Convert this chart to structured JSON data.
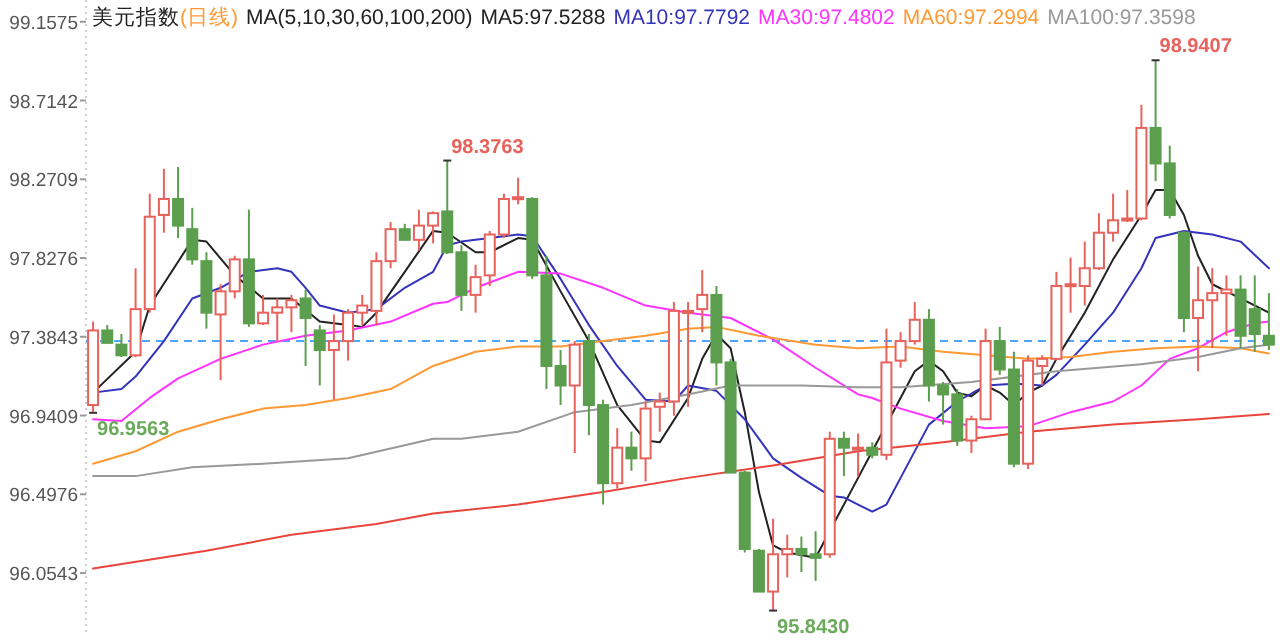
{
  "chart_data": {
    "type": "candlestick",
    "title": "美元指数",
    "subtitle": "(日线)",
    "legend_title": "MA(5,10,30,60,100,200)",
    "legend": "top",
    "categories": [
      null,
      null,
      null,
      null,
      null,
      null,
      null,
      null,
      null,
      null,
      null,
      null,
      null,
      null,
      null,
      null,
      null,
      null,
      null,
      null,
      null,
      null,
      null,
      null,
      null,
      null,
      null,
      null,
      null,
      null,
      null,
      null,
      null,
      null,
      null,
      null,
      null,
      null,
      null,
      null,
      null,
      null,
      null,
      null,
      null,
      null,
      null,
      null,
      null,
      null,
      null,
      null,
      null,
      null,
      null,
      null,
      null,
      null,
      null,
      null,
      null,
      null,
      null,
      null,
      null,
      null,
      null,
      null,
      null,
      null,
      null,
      null,
      null,
      null,
      null,
      null,
      null,
      null,
      null,
      null,
      null,
      null,
      null,
      null
    ],
    "ylim": [
      95.7,
      99.28
    ],
    "yticks": [
      96.0543,
      96.4976,
      96.9409,
      97.3843,
      97.8276,
      98.2709,
      98.7142,
      99.1575
    ],
    "ref_lines": [
      {
        "axis": "y",
        "value": 97.36,
        "color": "#4da6ff",
        "line_style": "dashed"
      }
    ],
    "annotations": [
      "96.9563",
      "98.3763",
      "95.8430",
      "98.9407"
    ],
    "series": [
      {
        "type": "line",
        "name": "MA5:97.5288",
        "color": "#222222",
        "values": [
          97.07,
          null,
          null,
          97.3,
          97.56,
          null,
          null,
          97.93,
          97.92,
          null,
          97.73,
          null,
          97.6,
          null,
          97.6,
          null,
          97.47,
          null,
          97.45,
          97.44,
          97.52,
          null,
          97.75,
          null,
          97.98,
          97.97,
          null,
          97.86,
          97.86,
          null,
          97.94,
          97.93,
          null,
          97.64,
          null,
          97.36,
          null,
          97.0,
          null,
          96.8,
          96.79,
          null,
          97.04,
          97.26,
          97.4,
          97.32,
          96.96,
          96.51,
          96.21,
          96.17,
          null,
          96.14,
          null,
          null,
          96.59,
          96.74,
          null,
          null,
          97.19,
          97.25,
          97.19,
          97.07,
          97.05,
          97.11,
          97.07,
          97.0,
          97.07,
          97.11,
          97.26,
          null,
          97.52,
          null,
          97.82,
          null,
          98.07,
          98.21,
          98.21,
          98.07,
          97.84,
          97.68,
          97.64,
          97.6,
          null,
          97.52
        ]
      },
      {
        "type": "line",
        "name": "MA10:97.7792",
        "color": "#3333bb",
        "values": [
          97.07,
          null,
          97.09,
          97.16,
          null,
          97.36,
          null,
          97.6,
          null,
          97.66,
          null,
          97.75,
          null,
          97.77,
          97.75,
          97.66,
          97.56,
          null,
          97.52,
          null,
          97.54,
          null,
          97.66,
          null,
          97.75,
          97.9,
          97.92,
          null,
          97.94,
          null,
          97.96,
          97.95,
          null,
          97.71,
          null,
          97.45,
          null,
          97.22,
          null,
          97.03,
          null,
          97.02,
          97.11,
          null,
          97.08,
          null,
          96.92,
          null,
          96.7,
          null,
          96.59,
          null,
          96.49,
          96.48,
          96.44,
          96.4,
          96.44,
          96.59,
          null,
          96.89,
          null,
          97.02,
          null,
          97.11,
          null,
          97.12,
          null,
          97.11,
          97.17,
          null,
          97.34,
          null,
          97.52,
          null,
          97.77,
          97.94,
          null,
          97.98,
          null,
          97.96,
          null,
          97.92,
          null,
          97.77
        ]
      },
      {
        "type": "line",
        "name": "MA30:97.4802",
        "color": "#ff33ff",
        "values": [
          96.92,
          null,
          96.91,
          null,
          97.04,
          null,
          97.15,
          null,
          null,
          97.26,
          null,
          null,
          97.34,
          null,
          null,
          97.39,
          null,
          null,
          97.42,
          null,
          null,
          97.47,
          null,
          null,
          97.57,
          97.58,
          null,
          97.66,
          null,
          null,
          97.75,
          null,
          null,
          97.74,
          null,
          null,
          97.66,
          null,
          null,
          97.56,
          null,
          null,
          97.52,
          null,
          null,
          97.49,
          null,
          null,
          97.37,
          null,
          null,
          97.21,
          null,
          null,
          97.06,
          97.04,
          null,
          96.98,
          null,
          null,
          96.91,
          null,
          null,
          96.87,
          null,
          null,
          96.88,
          null,
          null,
          96.96,
          null,
          null,
          97.02,
          null,
          97.11,
          null,
          97.26,
          null,
          97.32,
          null,
          97.41,
          null,
          97.46,
          97.47
        ]
      },
      {
        "type": "line",
        "name": "MA60:97.2994",
        "color": "#ff9933",
        "values": [
          96.67,
          null,
          null,
          96.74,
          null,
          null,
          96.85,
          null,
          null,
          96.92,
          null,
          null,
          96.98,
          null,
          null,
          97.0,
          null,
          null,
          97.04,
          null,
          null,
          97.09,
          null,
          null,
          97.22,
          null,
          null,
          97.3,
          null,
          null,
          97.33,
          null,
          null,
          97.33,
          null,
          null,
          97.36,
          null,
          null,
          97.39,
          null,
          null,
          97.43,
          null,
          97.44,
          null,
          null,
          97.39,
          null,
          null,
          null,
          97.34,
          null,
          null,
          97.32,
          null,
          null,
          97.33,
          null,
          null,
          97.3,
          null,
          null,
          97.28,
          null,
          null,
          97.26,
          null,
          null,
          97.27,
          null,
          null,
          97.3,
          null,
          null,
          97.32,
          null,
          null,
          97.33,
          null,
          null,
          97.32,
          null,
          97.29
        ]
      },
      {
        "type": "line",
        "name": "MA100:97.3598",
        "color": "#999999",
        "values": [
          96.6,
          null,
          null,
          96.6,
          null,
          null,
          null,
          96.65,
          null,
          null,
          null,
          null,
          96.67,
          null,
          null,
          null,
          null,
          null,
          96.7,
          null,
          null,
          null,
          null,
          null,
          96.81,
          null,
          96.81,
          null,
          null,
          null,
          96.85,
          null,
          null,
          null,
          96.96,
          null,
          null,
          null,
          97.0,
          null,
          null,
          null,
          97.06,
          null,
          null,
          97.11,
          null,
          null,
          null,
          null,
          97.11,
          null,
          null,
          null,
          97.1,
          null,
          null,
          97.1,
          null,
          null,
          null,
          null,
          97.13,
          null,
          null,
          null,
          null,
          null,
          97.19,
          null,
          null,
          null,
          null,
          null,
          97.23,
          null,
          null,
          null,
          97.27,
          null,
          null,
          97.32,
          null,
          97.34
        ]
      },
      {
        "type": "line",
        "color": "#e8453c",
        "values": [
          96.08,
          null,
          null,
          null,
          null,
          null,
          null,
          null,
          96.18,
          null,
          null,
          null,
          null,
          null,
          96.27,
          null,
          null,
          null,
          null,
          null,
          96.33,
          null,
          null,
          null,
          96.39,
          null,
          null,
          null,
          null,
          null,
          96.44,
          null,
          null,
          null,
          null,
          null,
          96.51,
          null,
          null,
          null,
          null,
          null,
          96.59,
          null,
          null,
          null,
          null,
          null,
          96.66,
          null,
          null,
          null,
          null,
          null,
          96.74,
          null,
          null,
          null,
          null,
          null,
          96.79,
          null,
          null,
          null,
          null,
          null,
          96.85,
          null,
          null,
          null,
          null,
          null,
          96.89,
          null,
          null,
          null,
          null,
          null,
          96.92,
          null,
          null,
          null,
          null,
          96.95
        ]
      },
      {
        "type": "candlestick",
        "ohlc": [
          [
            97.0,
            97.47,
            96.9563,
            97.42
          ],
          [
            97.42,
            97.45,
            97.35,
            97.35
          ],
          [
            97.34,
            97.4,
            97.27,
            97.28
          ],
          [
            97.28,
            97.77,
            97.27,
            97.54
          ],
          [
            97.54,
            98.19,
            97.52,
            98.06
          ],
          [
            98.07,
            98.33,
            97.97,
            98.16
          ],
          [
            98.16,
            98.34,
            97.94,
            98.01
          ],
          [
            97.99,
            98.11,
            97.79,
            97.82
          ],
          [
            97.81,
            97.86,
            97.43,
            97.52
          ],
          [
            97.51,
            97.68,
            97.14,
            97.64
          ],
          [
            97.64,
            97.84,
            97.6,
            97.82
          ],
          [
            97.82,
            98.1,
            97.44,
            97.46
          ],
          [
            97.46,
            97.62,
            97.45,
            97.52
          ],
          [
            97.52,
            97.6,
            97.36,
            97.55
          ],
          [
            97.55,
            97.62,
            97.41,
            97.59
          ],
          [
            97.6,
            97.65,
            97.22,
            97.49
          ],
          [
            97.42,
            97.45,
            97.11,
            97.31
          ],
          [
            97.31,
            97.51,
            97.03,
            97.36
          ],
          [
            97.36,
            97.54,
            97.25,
            97.52
          ],
          [
            97.52,
            97.62,
            97.45,
            97.56
          ],
          [
            97.53,
            97.86,
            97.45,
            97.81
          ],
          [
            97.81,
            98.03,
            97.77,
            97.99
          ],
          [
            97.99,
            98.02,
            97.93,
            97.93
          ],
          [
            97.93,
            98.1,
            97.87,
            98.01
          ],
          [
            98.01,
            98.09,
            97.91,
            98.08
          ],
          [
            98.09,
            98.3763,
            97.85,
            97.86
          ],
          [
            97.86,
            97.9,
            97.53,
            97.62
          ],
          [
            97.62,
            97.79,
            97.52,
            97.72
          ],
          [
            97.73,
            97.98,
            97.67,
            97.96
          ],
          [
            97.96,
            98.19,
            97.94,
            98.16
          ],
          [
            98.16,
            98.28,
            98.13,
            98.17
          ],
          [
            98.16,
            98.17,
            97.71,
            97.73
          ],
          [
            97.73,
            97.84,
            97.09,
            97.22
          ],
          [
            97.22,
            97.31,
            97.0,
            97.11
          ],
          [
            97.11,
            97.36,
            96.73,
            97.34
          ],
          [
            97.36,
            97.4,
            96.83,
            97.0
          ],
          [
            97.0,
            97.03,
            96.44,
            96.56
          ],
          [
            96.56,
            96.87,
            96.53,
            96.76
          ],
          [
            96.76,
            96.85,
            96.63,
            96.7
          ],
          [
            96.7,
            97.02,
            96.57,
            96.98
          ],
          [
            96.99,
            97.07,
            96.85,
            97.02
          ],
          [
            97.02,
            97.58,
            96.94,
            97.53
          ],
          [
            97.52,
            97.58,
            96.99,
            97.53
          ],
          [
            97.54,
            97.76,
            97.41,
            97.62
          ],
          [
            97.62,
            97.67,
            97.11,
            97.24
          ],
          [
            97.24,
            97.26,
            96.62,
            96.62
          ],
          [
            96.62,
            96.63,
            96.17,
            96.19
          ],
          [
            96.18,
            96.19,
            95.95,
            95.95
          ],
          [
            95.95,
            96.36,
            95.843,
            96.16
          ],
          [
            96.16,
            96.27,
            96.03,
            96.19
          ],
          [
            96.19,
            96.26,
            96.06,
            96.16
          ],
          [
            96.16,
            96.29,
            96.01,
            96.14
          ],
          [
            96.16,
            96.85,
            96.14,
            96.81
          ],
          [
            96.81,
            96.85,
            96.6,
            96.76
          ],
          [
            96.75,
            96.84,
            96.6,
            96.76
          ],
          [
            96.76,
            96.79,
            96.7,
            96.72
          ],
          [
            96.72,
            97.43,
            96.69,
            97.24
          ],
          [
            97.25,
            97.41,
            97.21,
            97.36
          ],
          [
            97.36,
            97.58,
            97.34,
            97.48
          ],
          [
            97.48,
            97.54,
            97.02,
            97.11
          ],
          [
            97.11,
            97.13,
            96.89,
            97.06
          ],
          [
            97.06,
            97.09,
            96.77,
            96.8
          ],
          [
            96.8,
            96.94,
            96.73,
            96.92
          ],
          [
            96.92,
            97.43,
            96.92,
            97.36
          ],
          [
            97.36,
            97.44,
            97.17,
            97.2
          ],
          [
            97.2,
            97.3,
            96.65,
            96.67
          ],
          [
            96.67,
            97.28,
            96.64,
            97.25
          ],
          [
            97.22,
            97.28,
            97.11,
            97.26
          ],
          [
            97.26,
            97.75,
            97.25,
            97.67
          ],
          [
            97.67,
            97.83,
            97.52,
            97.68
          ],
          [
            97.67,
            97.92,
            97.56,
            97.77
          ],
          [
            97.77,
            98.08,
            97.76,
            97.97
          ],
          [
            97.97,
            98.19,
            97.92,
            98.04
          ],
          [
            98.04,
            98.21,
            98.03,
            98.05
          ],
          [
            98.05,
            98.69,
            98.04,
            98.56
          ],
          [
            98.56,
            98.9407,
            98.26,
            98.36
          ],
          [
            98.36,
            98.46,
            98.05,
            98.07
          ],
          [
            97.97,
            97.98,
            97.41,
            97.49
          ],
          [
            97.49,
            97.78,
            97.19,
            97.59
          ],
          [
            97.59,
            97.77,
            97.32,
            97.63
          ],
          [
            97.63,
            97.73,
            97.39,
            97.65
          ],
          [
            97.65,
            97.73,
            97.32,
            97.39
          ],
          [
            97.54,
            97.73,
            97.3,
            97.4
          ],
          [
            97.39,
            97.63,
            97.31,
            97.34
          ]
        ],
        "colors": [
          "#e8625c",
          "#5b9e4d",
          "#5b9e4d",
          "#e8625c",
          "#e8625c",
          "#e8625c",
          "#5b9e4d",
          "#5b9e4d",
          "#5b9e4d",
          "#e8625c",
          "#e8625c",
          "#5b9e4d",
          "#e8625c",
          "#e8625c",
          "#e8625c",
          "#5b9e4d",
          "#5b9e4d",
          "#e8625c",
          "#e8625c",
          "#e8625c",
          "#e8625c",
          "#e8625c",
          "#5b9e4d",
          "#e8625c",
          "#e8625c",
          "#5b9e4d",
          "#5b9e4d",
          "#e8625c",
          "#e8625c",
          "#e8625c",
          "#e8625c",
          "#5b9e4d",
          "#5b9e4d",
          "#5b9e4d",
          "#e8625c",
          "#5b9e4d",
          "#5b9e4d",
          "#e8625c",
          "#5b9e4d",
          "#e8625c",
          "#e8625c",
          "#e8625c",
          "#e8625c",
          "#e8625c",
          "#5b9e4d",
          "#5b9e4d",
          "#5b9e4d",
          "#5b9e4d",
          "#e8625c",
          "#e8625c",
          "#5b9e4d",
          "#5b9e4d",
          "#e8625c",
          "#5b9e4d",
          "#e8625c",
          "#5b9e4d",
          "#e8625c",
          "#e8625c",
          "#e8625c",
          "#5b9e4d",
          "#5b9e4d",
          "#5b9e4d",
          "#e8625c",
          "#e8625c",
          "#5b9e4d",
          "#5b9e4d",
          "#e8625c",
          "#e8625c",
          "#e8625c",
          "#e8625c",
          "#e8625c",
          "#e8625c",
          "#e8625c",
          "#e8625c",
          "#e8625c",
          "#5b9e4d",
          "#5b9e4d",
          "#5b9e4d",
          "#e8625c",
          "#e8625c",
          "#e8625c",
          "#5b9e4d",
          "#5b9e4d",
          "#5b9e4d"
        ]
      }
    ]
  }
}
